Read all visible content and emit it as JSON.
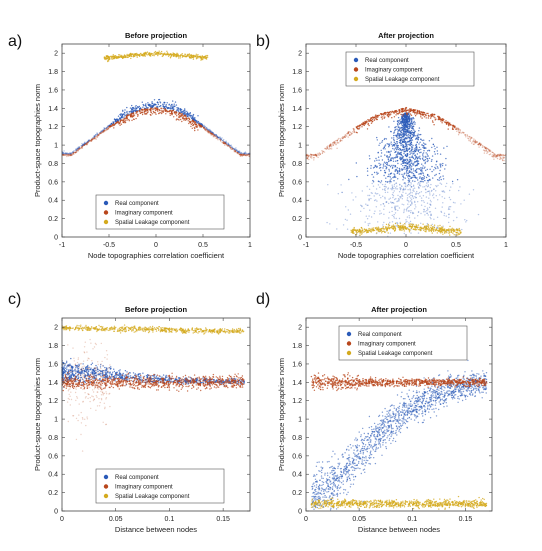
{
  "chart_data": [
    {
      "panel": "a)",
      "type": "scatter",
      "title": "Before projection",
      "xlabel": "Node topographies correlation coefficient",
      "ylabel": "Product-space topographies norm",
      "xlim": [
        -1,
        1
      ],
      "ylim": [
        0,
        2.1
      ],
      "xticks": [
        -1,
        -0.5,
        0,
        0.5,
        1
      ],
      "xtick_labels": [
        "-1",
        "-0.5",
        "0",
        "0.5",
        "1"
      ],
      "yticks": [
        0,
        0.2,
        0.4,
        0.6,
        0.8,
        1,
        1.2,
        1.4,
        1.6,
        1.8,
        2
      ],
      "ytick_labels": [
        "0",
        "0.2",
        "0.4",
        "0.6",
        "0.8",
        "1",
        "1.2",
        "1.4",
        "1.6",
        "1.8",
        "2"
      ],
      "legend_position": "bottom-center",
      "series": [
        {
          "name": "Real component",
          "color": "#2a5ab8",
          "x": [
            -0.9,
            -0.7,
            -0.5,
            -0.3,
            -0.15,
            0,
            0.15,
            0.3,
            0.5,
            0.7,
            0.9
          ],
          "y": [
            0.9,
            1.05,
            1.2,
            1.33,
            1.39,
            1.41,
            1.39,
            1.33,
            1.2,
            1.05,
            0.9
          ]
        },
        {
          "name": "Imaginary component",
          "color": "#b8461c",
          "x": [
            -0.9,
            -0.7,
            -0.5,
            -0.3,
            -0.15,
            0,
            0.15,
            0.3,
            0.5,
            0.7,
            0.9
          ],
          "y": [
            0.9,
            1.05,
            1.2,
            1.33,
            1.39,
            1.41,
            1.39,
            1.33,
            1.2,
            1.05,
            0.9
          ]
        },
        {
          "name": "Spatial Leakage component",
          "color": "#d4aa1e",
          "x": [
            -0.5,
            -0.3,
            -0.1,
            0,
            0.1,
            0.3,
            0.5
          ],
          "y": [
            1.95,
            1.97,
            1.99,
            2.0,
            1.99,
            1.97,
            1.95
          ]
        }
      ]
    },
    {
      "panel": "b)",
      "type": "scatter",
      "title": "After projection",
      "xlabel": "Node topographies correlation coefficient",
      "ylabel": "Product-space topographies norm",
      "xlim": [
        -1,
        1
      ],
      "ylim": [
        0,
        2.1
      ],
      "xticks": [
        -1,
        -0.5,
        0,
        0.5,
        1
      ],
      "xtick_labels": [
        "-1",
        "-0.5",
        "0",
        "0.5",
        "1"
      ],
      "yticks": [
        0,
        0.2,
        0.4,
        0.6,
        0.8,
        1,
        1.2,
        1.4,
        1.6,
        1.8,
        2
      ],
      "ytick_labels": [
        "0",
        "0.2",
        "0.4",
        "0.6",
        "0.8",
        "1",
        "1.2",
        "1.4",
        "1.6",
        "1.8",
        "2"
      ],
      "legend_position": "top-center",
      "series": [
        {
          "name": "Real component",
          "color": "#2a5ab8",
          "x": [
            -0.8,
            -0.5,
            -0.3,
            -0.1,
            0,
            0.1,
            0.3,
            0.5,
            0.8
          ],
          "y": [
            0.15,
            0.35,
            0.6,
            1.0,
            1.3,
            1.0,
            0.6,
            0.35,
            0.15
          ]
        },
        {
          "name": "Imaginary component",
          "color": "#b8461c",
          "x": [
            -0.9,
            -0.7,
            -0.5,
            -0.3,
            0,
            0.3,
            0.5,
            0.7,
            0.9
          ],
          "y": [
            0.9,
            1.05,
            1.2,
            1.33,
            1.41,
            1.33,
            1.2,
            1.05,
            0.9
          ]
        },
        {
          "name": "Spatial Leakage component",
          "color": "#d4aa1e",
          "x": [
            -0.5,
            -0.3,
            -0.1,
            0,
            0.1,
            0.3,
            0.5
          ],
          "y": [
            0.06,
            0.08,
            0.1,
            0.11,
            0.1,
            0.08,
            0.06
          ]
        }
      ]
    },
    {
      "panel": "c)",
      "type": "scatter",
      "title": "Before projection",
      "xlabel": "Distance between nodes",
      "ylabel": "Product-space topographies norm",
      "xlim": [
        0,
        0.175
      ],
      "ylim": [
        0,
        2.1
      ],
      "xticks": [
        0,
        0.05,
        0.1,
        0.15
      ],
      "xtick_labels": [
        "0",
        "0.05",
        "0.1",
        "0.15"
      ],
      "yticks": [
        0,
        0.2,
        0.4,
        0.6,
        0.8,
        1,
        1.2,
        1.4,
        1.6,
        1.8,
        2
      ],
      "ytick_labels": [
        "0",
        "0.2",
        "0.4",
        "0.6",
        "0.8",
        "1",
        "1.2",
        "1.4",
        "1.6",
        "1.8",
        "2"
      ],
      "legend_position": "bottom-center",
      "series": [
        {
          "name": "Real component",
          "color": "#2a5ab8",
          "x": [
            0.01,
            0.03,
            0.05,
            0.08,
            0.11,
            0.14,
            0.17
          ],
          "y": [
            1.5,
            1.5,
            1.47,
            1.44,
            1.42,
            1.41,
            1.41
          ]
        },
        {
          "name": "Imaginary component",
          "color": "#b8461c",
          "x": [
            0.01,
            0.03,
            0.05,
            0.08,
            0.11,
            0.14,
            0.17
          ],
          "y": [
            1.4,
            1.4,
            1.4,
            1.4,
            1.4,
            1.4,
            1.4
          ]
        },
        {
          "name": "Spatial Leakage component",
          "color": "#d4aa1e",
          "x": [
            0.01,
            0.05,
            0.1,
            0.15,
            0.17
          ],
          "y": [
            1.99,
            1.98,
            1.97,
            1.96,
            1.96
          ]
        }
      ]
    },
    {
      "panel": "d)",
      "type": "scatter",
      "title": "After projection",
      "xlabel": "Distance between nodes",
      "ylabel": "Product-space topographies norm",
      "xlim": [
        0,
        0.175
      ],
      "ylim": [
        0,
        2.1
      ],
      "xticks": [
        0,
        0.05,
        0.1,
        0.15
      ],
      "xtick_labels": [
        "0",
        "0.05",
        "0.1",
        "0.15"
      ],
      "yticks": [
        0,
        0.2,
        0.4,
        0.6,
        0.8,
        1,
        1.2,
        1.4,
        1.6,
        1.8,
        2
      ],
      "ytick_labels": [
        "0",
        "0.2",
        "0.4",
        "0.6",
        "0.8",
        "1",
        "1.2",
        "1.4",
        "1.6",
        "1.8",
        "2"
      ],
      "legend_position": "top-center",
      "series": [
        {
          "name": "Real component",
          "color": "#2a5ab8",
          "x": [
            0.01,
            0.03,
            0.05,
            0.07,
            0.09,
            0.11,
            0.13,
            0.15,
            0.17
          ],
          "y": [
            0.15,
            0.35,
            0.6,
            0.85,
            1.05,
            1.2,
            1.3,
            1.36,
            1.4
          ]
        },
        {
          "name": "Imaginary component",
          "color": "#b8461c",
          "x": [
            0.01,
            0.05,
            0.1,
            0.15,
            0.17
          ],
          "y": [
            1.4,
            1.4,
            1.4,
            1.4,
            1.4
          ]
        },
        {
          "name": "Spatial Leakage component",
          "color": "#d4aa1e",
          "x": [
            0.01,
            0.05,
            0.1,
            0.15,
            0.17
          ],
          "y": [
            0.08,
            0.08,
            0.08,
            0.08,
            0.08
          ]
        }
      ]
    }
  ]
}
